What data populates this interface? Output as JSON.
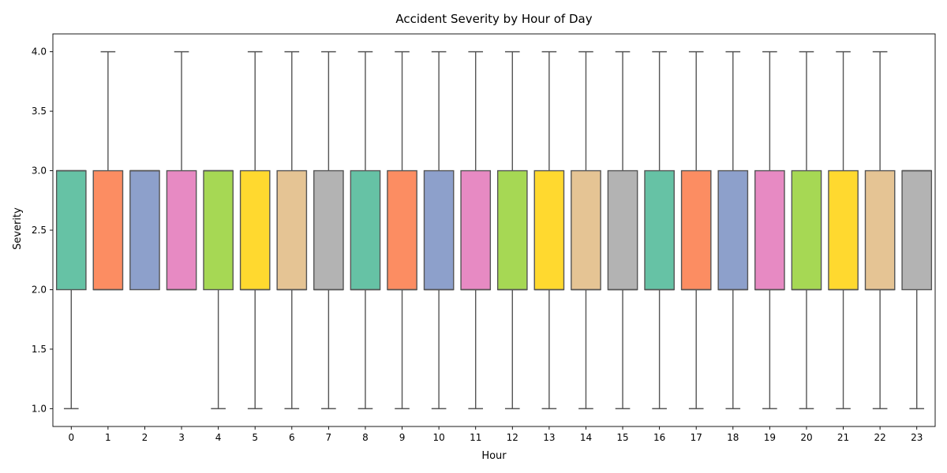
{
  "chart_data": {
    "type": "box",
    "title": "Accident Severity by Hour of Day",
    "xlabel": "Hour",
    "ylabel": "Severity",
    "ylim": [
      0.85,
      4.15
    ],
    "yticks": [
      "1.0",
      "1.5",
      "2.0",
      "2.5",
      "3.0",
      "3.5",
      "4.0"
    ],
    "grid": false,
    "categories": [
      "0",
      "1",
      "2",
      "3",
      "4",
      "5",
      "6",
      "7",
      "8",
      "9",
      "10",
      "11",
      "12",
      "13",
      "14",
      "15",
      "16",
      "17",
      "18",
      "19",
      "20",
      "21",
      "22",
      "23"
    ],
    "boxes": [
      {
        "whisker_low": 1,
        "q1": 2,
        "median": 3,
        "q3": 3,
        "whisker_high": 3
      },
      {
        "whisker_low": 2,
        "q1": 2,
        "median": 2,
        "q3": 3,
        "whisker_high": 4
      },
      {
        "whisker_low": 2,
        "q1": 2,
        "median": 3,
        "q3": 3,
        "whisker_high": 3
      },
      {
        "whisker_low": 2,
        "q1": 2,
        "median": 2,
        "q3": 3,
        "whisker_high": 4
      },
      {
        "whisker_low": 1,
        "q1": 2,
        "median": 3,
        "q3": 3,
        "whisker_high": 3
      },
      {
        "whisker_low": 1,
        "q1": 2,
        "median": 2,
        "q3": 3,
        "whisker_high": 4
      },
      {
        "whisker_low": 1,
        "q1": 2,
        "median": 2,
        "q3": 3,
        "whisker_high": 4
      },
      {
        "whisker_low": 1,
        "q1": 2,
        "median": 2,
        "q3": 3,
        "whisker_high": 4
      },
      {
        "whisker_low": 1,
        "q1": 2,
        "median": 2,
        "q3": 3,
        "whisker_high": 4
      },
      {
        "whisker_low": 1,
        "q1": 2,
        "median": 2,
        "q3": 3,
        "whisker_high": 4
      },
      {
        "whisker_low": 1,
        "q1": 2,
        "median": 2,
        "q3": 3,
        "whisker_high": 4
      },
      {
        "whisker_low": 1,
        "q1": 2,
        "median": 2,
        "q3": 3,
        "whisker_high": 4
      },
      {
        "whisker_low": 1,
        "q1": 2,
        "median": 2,
        "q3": 3,
        "whisker_high": 4
      },
      {
        "whisker_low": 1,
        "q1": 2,
        "median": 2,
        "q3": 3,
        "whisker_high": 4
      },
      {
        "whisker_low": 1,
        "q1": 2,
        "median": 2,
        "q3": 3,
        "whisker_high": 4
      },
      {
        "whisker_low": 1,
        "q1": 2,
        "median": 2,
        "q3": 3,
        "whisker_high": 4
      },
      {
        "whisker_low": 1,
        "q1": 2,
        "median": 2,
        "q3": 3,
        "whisker_high": 4
      },
      {
        "whisker_low": 1,
        "q1": 2,
        "median": 2,
        "q3": 3,
        "whisker_high": 4
      },
      {
        "whisker_low": 1,
        "q1": 2,
        "median": 2,
        "q3": 3,
        "whisker_high": 4
      },
      {
        "whisker_low": 1,
        "q1": 2,
        "median": 2,
        "q3": 3,
        "whisker_high": 4
      },
      {
        "whisker_low": 1,
        "q1": 2,
        "median": 2,
        "q3": 3,
        "whisker_high": 4
      },
      {
        "whisker_low": 1,
        "q1": 2,
        "median": 2,
        "q3": 3,
        "whisker_high": 4
      },
      {
        "whisker_low": 1,
        "q1": 2,
        "median": 2,
        "q3": 3,
        "whisker_high": 4
      },
      {
        "whisker_low": 1,
        "q1": 2,
        "median": 3,
        "q3": 3,
        "whisker_high": 3
      }
    ],
    "palette": [
      "#66c2a5",
      "#fc8d62",
      "#8da0cb",
      "#e78ac3",
      "#a6d854",
      "#ffd92f",
      "#e5c494",
      "#b3b3b3"
    ],
    "line_color": "#555555"
  }
}
